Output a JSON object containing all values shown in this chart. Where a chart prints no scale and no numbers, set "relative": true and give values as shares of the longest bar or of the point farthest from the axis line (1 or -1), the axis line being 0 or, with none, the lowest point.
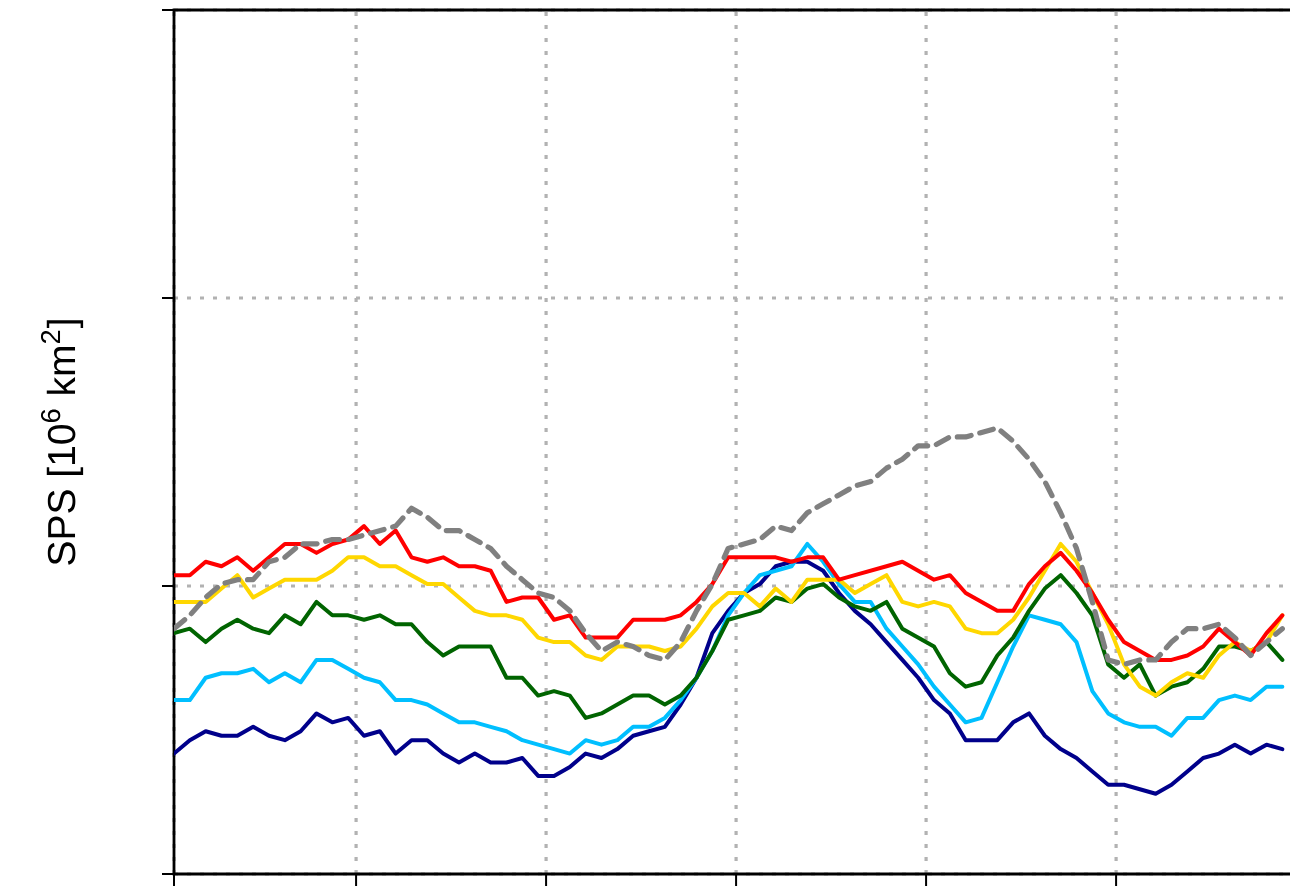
{
  "chart_data": {
    "type": "line",
    "ylabel": "SPS [10$^{6}$ km$^{2}$]",
    "relative": true,
    "grid": true,
    "line_style": "solid",
    "categories": [
      null,
      null,
      null,
      null,
      null,
      null,
      null,
      null,
      null,
      null,
      null,
      null,
      null,
      null,
      null,
      null,
      null,
      null,
      null,
      null,
      null,
      null,
      null,
      null,
      null,
      null,
      null,
      null,
      null,
      null,
      null,
      null,
      null,
      null,
      null,
      null,
      null,
      null,
      null,
      null,
      null,
      null,
      null,
      null,
      null,
      null,
      null,
      null,
      null,
      null,
      null,
      null,
      null,
      null,
      null,
      null,
      null,
      null,
      null,
      null,
      null,
      null,
      null,
      null,
      null,
      null,
      null,
      null,
      null,
      null,
      null
    ],
    "series": [
      {
        "color": "#00008b",
        "values": [
          0.27,
          0.3,
          0.32,
          0.31,
          0.31,
          0.33,
          0.31,
          0.3,
          0.32,
          0.36,
          0.34,
          0.35,
          0.31,
          0.32,
          0.27,
          0.3,
          0.3,
          0.27,
          0.25,
          0.27,
          0.25,
          0.25,
          0.26,
          0.22,
          0.22,
          0.24,
          0.27,
          0.26,
          0.28,
          0.31,
          0.32,
          0.33,
          0.38,
          0.44,
          0.54,
          0.59,
          0.63,
          0.65,
          0.69,
          0.7,
          0.7,
          0.68,
          0.63,
          0.59,
          0.56,
          0.52,
          0.48,
          0.44,
          0.39,
          0.36,
          0.3,
          0.3,
          0.3,
          0.34,
          0.36,
          0.31,
          0.28,
          0.26,
          0.23,
          0.2,
          0.2,
          0.19,
          0.18,
          0.2,
          0.23,
          0.26,
          0.27,
          0.29,
          0.27,
          0.29,
          0.28
        ]
      },
      {
        "color": "#00bfff",
        "values": [
          0.39,
          0.39,
          0.44,
          0.45,
          0.45,
          0.46,
          0.43,
          0.45,
          0.43,
          0.48,
          0.48,
          0.46,
          0.44,
          0.43,
          0.39,
          0.39,
          0.38,
          0.36,
          0.34,
          0.34,
          0.33,
          0.32,
          0.3,
          0.29,
          0.28,
          0.27,
          0.3,
          0.29,
          0.3,
          0.33,
          0.33,
          0.35,
          0.39,
          0.44,
          0.5,
          0.58,
          0.63,
          0.67,
          0.68,
          0.69,
          0.74,
          0.7,
          0.65,
          0.61,
          0.61,
          0.55,
          0.51,
          0.47,
          0.42,
          0.38,
          0.34,
          0.35,
          0.43,
          0.51,
          0.58,
          0.57,
          0.56,
          0.52,
          0.41,
          0.36,
          0.34,
          0.33,
          0.33,
          0.31,
          0.35,
          0.35,
          0.39,
          0.4,
          0.39,
          0.42,
          0.42
        ]
      },
      {
        "color": "#006400",
        "values": [
          0.54,
          0.55,
          0.52,
          0.55,
          0.57,
          0.55,
          0.54,
          0.58,
          0.56,
          0.61,
          0.58,
          0.58,
          0.57,
          0.58,
          0.56,
          0.56,
          0.52,
          0.49,
          0.51,
          0.51,
          0.51,
          0.44,
          0.44,
          0.4,
          0.41,
          0.4,
          0.35,
          0.36,
          0.38,
          0.4,
          0.4,
          0.38,
          0.4,
          0.44,
          0.5,
          0.57,
          0.58,
          0.59,
          0.62,
          0.61,
          0.64,
          0.65,
          0.62,
          0.6,
          0.59,
          0.61,
          0.55,
          0.53,
          0.51,
          0.45,
          0.42,
          0.43,
          0.49,
          0.53,
          0.59,
          0.64,
          0.67,
          0.63,
          0.58,
          0.47,
          0.44,
          0.47,
          0.4,
          0.42,
          0.43,
          0.46,
          0.51,
          0.51,
          0.5,
          0.52,
          0.48
        ]
      },
      {
        "color": "#ffd700",
        "values": [
          0.61,
          0.61,
          0.61,
          0.64,
          0.67,
          0.62,
          0.64,
          0.66,
          0.66,
          0.66,
          0.68,
          0.71,
          0.71,
          0.69,
          0.69,
          0.67,
          0.65,
          0.65,
          0.62,
          0.59,
          0.58,
          0.58,
          0.57,
          0.53,
          0.52,
          0.52,
          0.49,
          0.48,
          0.51,
          0.51,
          0.51,
          0.5,
          0.51,
          0.55,
          0.6,
          0.63,
          0.63,
          0.6,
          0.64,
          0.61,
          0.66,
          0.66,
          0.66,
          0.63,
          0.65,
          0.67,
          0.61,
          0.6,
          0.61,
          0.6,
          0.55,
          0.54,
          0.54,
          0.57,
          0.62,
          0.68,
          0.74,
          0.7,
          0.63,
          0.56,
          0.47,
          0.42,
          0.4,
          0.43,
          0.45,
          0.44,
          0.49,
          0.52,
          0.5,
          0.52,
          0.58
        ]
      },
      {
        "color": "#ff0000",
        "values": [
          0.67,
          0.67,
          0.7,
          0.69,
          0.71,
          0.68,
          0.71,
          0.74,
          0.74,
          0.72,
          0.74,
          0.75,
          0.78,
          0.74,
          0.77,
          0.71,
          0.7,
          0.71,
          0.69,
          0.69,
          0.68,
          0.61,
          0.62,
          0.62,
          0.57,
          0.58,
          0.53,
          0.53,
          0.53,
          0.57,
          0.57,
          0.57,
          0.58,
          0.61,
          0.65,
          0.71,
          0.71,
          0.71,
          0.71,
          0.7,
          0.71,
          0.71,
          0.66,
          0.67,
          0.68,
          0.69,
          0.7,
          0.68,
          0.66,
          0.67,
          0.63,
          0.61,
          0.59,
          0.59,
          0.65,
          0.69,
          0.72,
          0.68,
          0.63,
          0.57,
          0.52,
          0.5,
          0.48,
          0.48,
          0.49,
          0.51,
          0.55,
          0.52,
          0.49,
          0.54,
          0.58
        ]
      },
      {
        "color": "#808080",
        "line_style": "dashed",
        "values": [
          0.55,
          0.58,
          0.62,
          0.65,
          0.66,
          0.66,
          0.7,
          0.71,
          0.74,
          0.74,
          0.75,
          0.75,
          0.76,
          0.77,
          0.78,
          0.82,
          0.8,
          0.77,
          0.77,
          0.75,
          0.73,
          0.69,
          0.66,
          0.63,
          0.62,
          0.59,
          0.54,
          0.5,
          0.52,
          0.51,
          0.49,
          0.48,
          0.52,
          0.59,
          0.65,
          0.73,
          0.74,
          0.75,
          0.78,
          0.77,
          0.81,
          0.83,
          0.85,
          0.87,
          0.88,
          0.91,
          0.93,
          0.96,
          0.96,
          0.98,
          0.98,
          0.99,
          1.0,
          0.97,
          0.93,
          0.88,
          0.81,
          0.73,
          0.61,
          0.48,
          0.47,
          0.48,
          0.48,
          0.52,
          0.55,
          0.55,
          0.56,
          0.53,
          0.49,
          0.52,
          0.55
        ]
      }
    ]
  }
}
